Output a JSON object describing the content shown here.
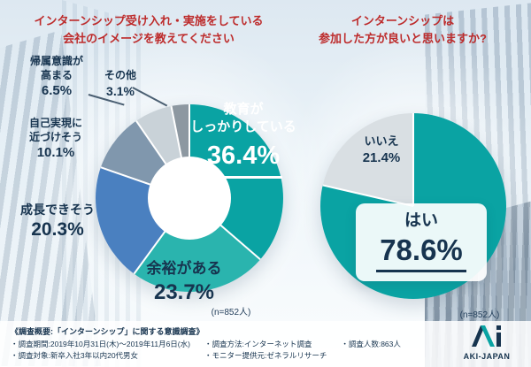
{
  "left_chart": {
    "title_lines": [
      "インターンシップ受け入れ・実施をしている",
      "会社のイメージを教えてください"
    ],
    "sample_label": "(n=852人)",
    "segments": [
      {
        "name_lines": [
          "教育が",
          "しっかりしている"
        ],
        "pct": "36.4%"
      },
      {
        "name_lines": [
          "余裕がある"
        ],
        "pct": "23.7%"
      },
      {
        "name_lines": [
          "成長できそう"
        ],
        "pct": "20.3%"
      },
      {
        "name_lines": [
          "自己実現に",
          "近づけそう"
        ],
        "pct": "10.1%"
      },
      {
        "name_lines": [
          "帰属意識が",
          "高まる"
        ],
        "pct": "6.5%"
      },
      {
        "name_lines": [
          "その他"
        ],
        "pct": "3.1%"
      }
    ]
  },
  "right_chart": {
    "title_lines": [
      "インターンシップは",
      "参加した方が良いと思いますか?"
    ],
    "sample_label": "(n=852人)",
    "segments": [
      {
        "name": "はい",
        "pct": "78.6%"
      },
      {
        "name": "いいえ",
        "pct": "21.4%"
      }
    ]
  },
  "footer": {
    "heading": "《調査概要:「インターンシップ」に関する意識調査》",
    "items": {
      "period": "・調査期間:2019年10月31日(木)〜2019年11月6日(水)",
      "method": "・調査方法:インターネット調査",
      "count": "・調査人数:863人",
      "target": "・調査対象:新卒入社3年以内20代男女",
      "monitor": "・モニター提供元:ゼネラルリサーチ"
    }
  },
  "logo": {
    "text": "AKI-JAPAN"
  },
  "colors": {
    "accent_teal": "#0aa3a3",
    "title_red": "#bd2b2b",
    "text_navy": "#17344f"
  },
  "chart_data": [
    {
      "type": "pie",
      "subtype": "donut",
      "title": "インターンシップ受け入れ・実施をしている会社のイメージを教えてください",
      "sample_label": "(n=852人)",
      "categories": [
        "教育がしっかりしている",
        "余裕がある",
        "成長できそう",
        "自己実現に近づけそう",
        "帰属意識が高まる",
        "その他"
      ],
      "values": [
        36.4,
        23.7,
        20.3,
        10.1,
        6.5,
        3.1
      ],
      "colors": [
        "#0aa3a3",
        "#2ab4ae",
        "#4a80c0",
        "#8097ad",
        "#c9d2d8",
        "#8d98a1"
      ],
      "start_angle_deg": 0,
      "direction": "clockwise",
      "legend_position": "around"
    },
    {
      "type": "pie",
      "title": "インターンシップは参加した方が良いと思いますか?",
      "sample_label": "(n=852人)",
      "categories": [
        "はい",
        "いいえ"
      ],
      "values": [
        78.6,
        21.4
      ],
      "colors": [
        "#0aa3a3",
        "#d9dfe3"
      ],
      "start_angle_deg": 0,
      "direction": "clockwise",
      "legend_position": "around"
    }
  ]
}
